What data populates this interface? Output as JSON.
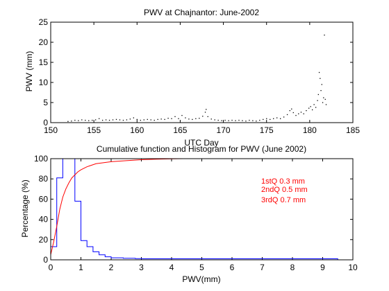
{
  "chart_data": [
    {
      "type": "scatter",
      "title": "PWV at Chajnantor: June-2002",
      "xlabel": "UTC Day",
      "ylabel": "PWV (mm)",
      "xlim": [
        150,
        185
      ],
      "ylim": [
        0,
        25
      ],
      "xticks": [
        "150",
        "155",
        "160",
        "165",
        "170",
        "175",
        "180",
        "185"
      ],
      "yticks": [
        "0",
        "5",
        "10",
        "15",
        "20",
        "25"
      ],
      "grid": false,
      "series_color": "#000000",
      "points": [
        [
          152.0,
          0.3
        ],
        [
          152.4,
          0.4
        ],
        [
          152.8,
          0.6
        ],
        [
          153.2,
          0.5
        ],
        [
          153.6,
          0.7
        ],
        [
          154.0,
          0.6
        ],
        [
          154.4,
          0.5
        ],
        [
          154.8,
          0.6
        ],
        [
          155.2,
          0.7
        ],
        [
          155.6,
          1.0
        ],
        [
          156.0,
          0.6
        ],
        [
          156.4,
          0.7
        ],
        [
          156.8,
          0.6
        ],
        [
          157.2,
          0.7
        ],
        [
          157.6,
          0.8
        ],
        [
          158.0,
          0.7
        ],
        [
          158.4,
          0.6
        ],
        [
          158.8,
          0.7
        ],
        [
          159.2,
          0.9
        ],
        [
          159.6,
          1.2
        ],
        [
          160.0,
          0.8
        ],
        [
          160.4,
          0.6
        ],
        [
          160.8,
          0.7
        ],
        [
          161.2,
          0.8
        ],
        [
          161.6,
          0.7
        ],
        [
          162.0,
          0.6
        ],
        [
          162.4,
          0.8
        ],
        [
          162.8,
          0.9
        ],
        [
          163.2,
          0.8
        ],
        [
          163.6,
          1.1
        ],
        [
          164.0,
          1.0
        ],
        [
          164.4,
          1.5
        ],
        [
          164.8,
          1.0
        ],
        [
          165.2,
          1.8
        ],
        [
          165.6,
          1.2
        ],
        [
          166.0,
          0.9
        ],
        [
          166.4,
          0.8
        ],
        [
          166.8,
          1.0
        ],
        [
          167.2,
          1.1
        ],
        [
          167.6,
          1.6
        ],
        [
          167.9,
          2.6
        ],
        [
          168.0,
          3.3
        ],
        [
          168.2,
          1.5
        ],
        [
          168.6,
          0.9
        ],
        [
          169.0,
          0.7
        ],
        [
          169.4,
          0.6
        ],
        [
          169.8,
          0.5
        ],
        [
          170.2,
          0.6
        ],
        [
          170.6,
          0.5
        ],
        [
          171.0,
          0.6
        ],
        [
          171.4,
          0.5
        ],
        [
          171.8,
          0.6
        ],
        [
          172.2,
          0.5
        ],
        [
          172.6,
          0.4
        ],
        [
          173.0,
          0.6
        ],
        [
          173.4,
          0.5
        ],
        [
          173.8,
          0.4
        ],
        [
          174.2,
          0.6
        ],
        [
          174.6,
          0.8
        ],
        [
          175.0,
          1.0
        ],
        [
          175.4,
          0.8
        ],
        [
          175.8,
          1.0
        ],
        [
          176.2,
          1.2
        ],
        [
          176.6,
          1.0
        ],
        [
          177.0,
          1.4
        ],
        [
          177.4,
          2.0
        ],
        [
          177.7,
          3.0
        ],
        [
          177.9,
          3.4
        ],
        [
          178.1,
          2.5
        ],
        [
          178.4,
          1.8
        ],
        [
          178.7,
          2.2
        ],
        [
          179.0,
          2.6
        ],
        [
          179.3,
          2.2
        ],
        [
          179.6,
          3.0
        ],
        [
          179.9,
          3.6
        ],
        [
          180.1,
          4.0
        ],
        [
          180.3,
          3.2
        ],
        [
          180.5,
          4.5
        ],
        [
          180.7,
          3.8
        ],
        [
          180.9,
          5.5
        ],
        [
          181.0,
          7.0
        ],
        [
          181.1,
          12.5
        ],
        [
          181.2,
          11.0
        ],
        [
          181.3,
          8.0
        ],
        [
          181.4,
          9.5
        ],
        [
          181.5,
          5.0
        ],
        [
          181.6,
          6.2
        ],
        [
          181.7,
          21.8
        ],
        [
          181.8,
          5.8
        ],
        [
          181.9,
          4.5
        ]
      ]
    },
    {
      "type": "line",
      "title": "Cumulative function and Histogram for PWV (June 2002)",
      "xlabel": "PWV(mm)",
      "ylabel": "Percentage (%)",
      "xlim": [
        0,
        10
      ],
      "ylim": [
        0,
        100
      ],
      "xticks": [
        "0",
        "1",
        "2",
        "3",
        "4",
        "5",
        "6",
        "7",
        "8",
        "9",
        "10"
      ],
      "yticks": [
        "0",
        "20",
        "40",
        "60",
        "80",
        "100"
      ],
      "grid": false,
      "annotations": [
        "1stQ 0.3 mm",
        "2ndQ 0.5 mm",
        "3rdQ 0.7 mm"
      ],
      "annotation_color": "#ff0000",
      "series": [
        {
          "style": "histogram",
          "color": "#0000ff",
          "bin_edges": [
            0.0,
            0.2,
            0.4,
            0.6,
            0.8,
            1.0,
            1.2,
            1.4,
            1.6,
            1.8,
            2.0,
            2.2,
            2.4,
            2.6,
            2.8,
            3.0,
            9.5
          ],
          "values": [
            13,
            81,
            100,
            100,
            58,
            19,
            13,
            8,
            5,
            3,
            2,
            2,
            1.5,
            1.5,
            1.2,
            1
          ]
        },
        {
          "style": "line",
          "color": "#ff0000",
          "x": [
            0.0,
            0.1,
            0.2,
            0.3,
            0.4,
            0.5,
            0.6,
            0.7,
            0.8,
            0.9,
            1.0,
            1.2,
            1.5,
            2.0,
            2.5,
            3.0,
            3.5,
            4.0,
            4.4,
            10.0
          ],
          "values": [
            5,
            18,
            33,
            50,
            62,
            70,
            76,
            81,
            84,
            87,
            89,
            92,
            95,
            97,
            98,
            99,
            99.5,
            99.8,
            100,
            100
          ]
        }
      ]
    }
  ]
}
